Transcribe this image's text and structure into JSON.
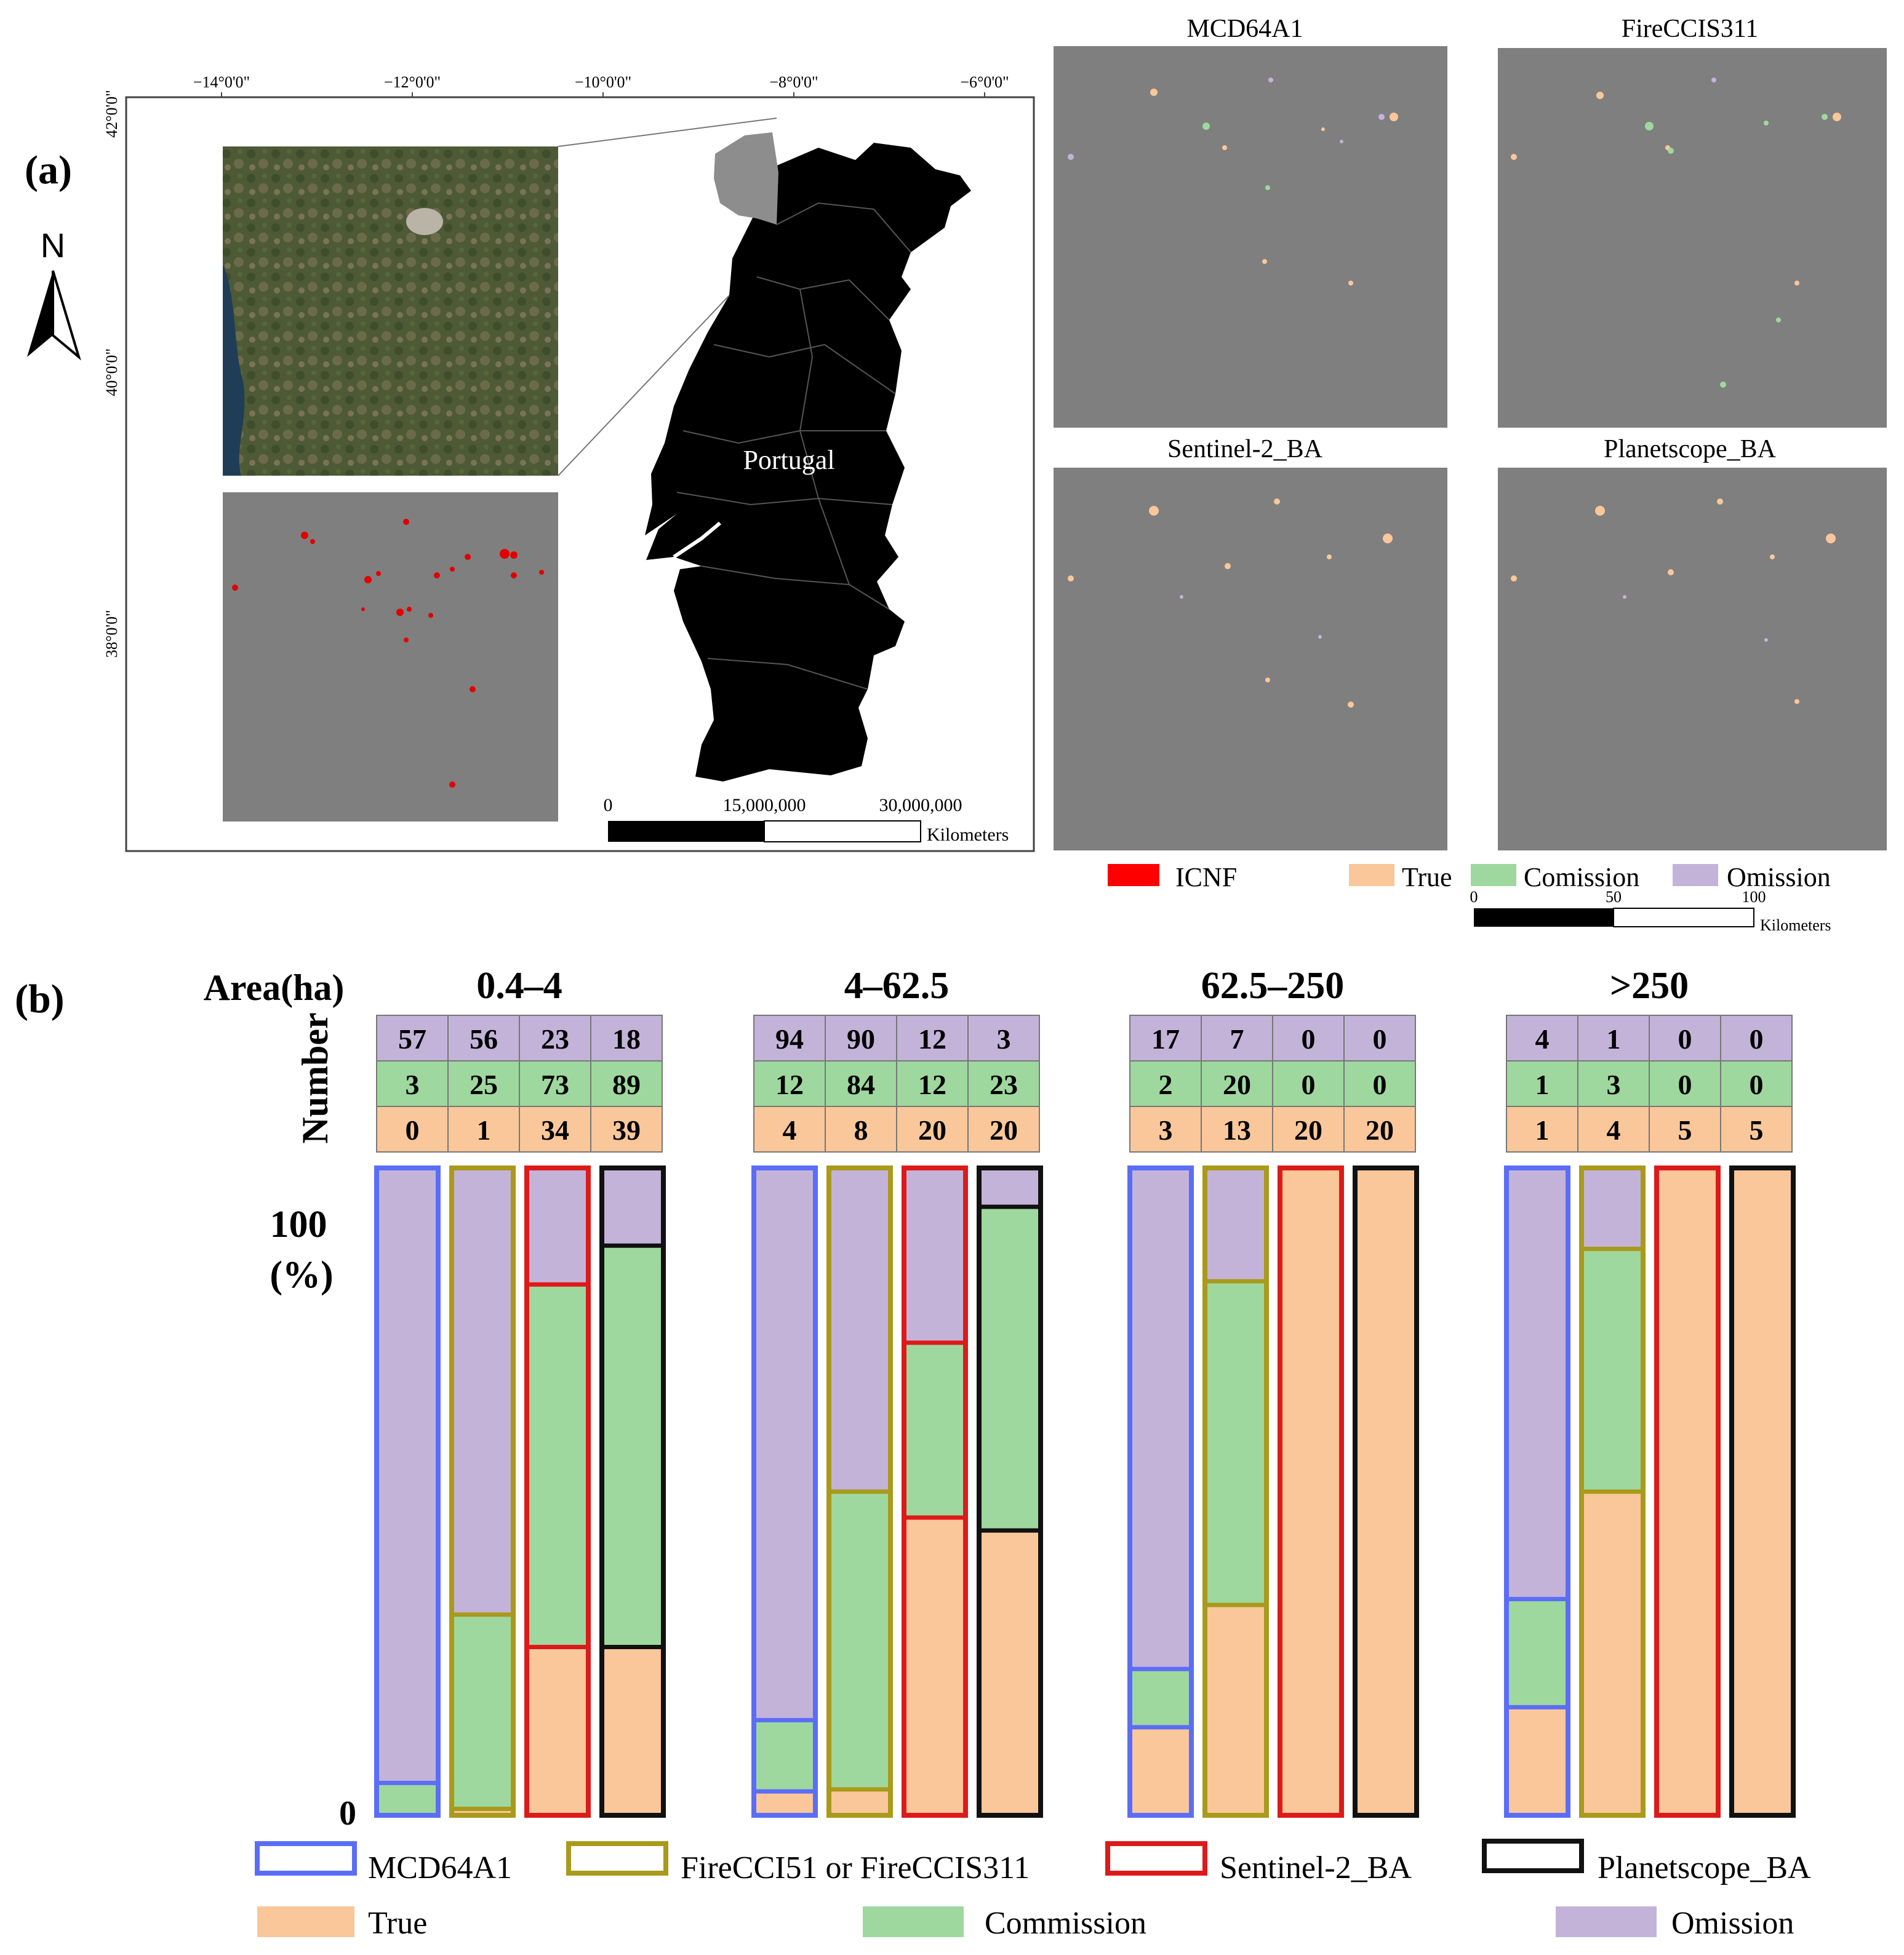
{
  "panel_a": {
    "label": "(a)",
    "north_label": "N",
    "lon_ticks": [
      "−14°0'0\"",
      "−12°0'0\"",
      "−10°0'0\"",
      "−8°0'0\"",
      "−6°0'0\""
    ],
    "lat_ticks": [
      "42°0'0\"",
      "40°0'0\"",
      "38°0'0\""
    ],
    "country_label": "Portugal",
    "scale_left": {
      "ticks": [
        "0",
        "15,000,000",
        "30,000,000"
      ],
      "unit": "Kilometers"
    },
    "map_titles": [
      "MCD64A1",
      "FireCCIS311",
      "Sentinel-2_BA",
      "Planetscope_BA"
    ],
    "legend": [
      {
        "label": "ICNF",
        "color": "#ff0000"
      },
      {
        "label": "True",
        "color": "#f9c79a"
      },
      {
        "label": "Comission",
        "color": "#9ed89e"
      },
      {
        "label": "Omission",
        "color": "#c4b3d9"
      }
    ],
    "scale_right": {
      "ticks": [
        "0",
        "50",
        "100"
      ],
      "unit": "Kilometers"
    }
  },
  "panel_b": {
    "label": "(b)",
    "area_label": "Area(ha)",
    "number_label": "Number",
    "y_top": "100",
    "y_unit": "(%)",
    "y_bottom": "0"
  },
  "colors": {
    "true": "#f9c79a",
    "commission": "#9ed89e",
    "omission": "#c4b3d9",
    "MCD64A1": "#5b6df7",
    "FireCCI": "#a99a1c",
    "Sentinel2": "#dd1a1a",
    "Planetscope": "#111111"
  },
  "chart_data": {
    "type": "bar",
    "stacked": true,
    "title": "",
    "xlabel": "Area(ha)",
    "ylabel": "(%)",
    "ylim": [
      0,
      100
    ],
    "area_classes": [
      "0.4–4",
      "4–62.5",
      "62.5–250",
      ">250"
    ],
    "products": [
      "MCD64A1",
      "FireCCI51 or FireCCIS311",
      "Sentinel-2_BA",
      "Planetscope_BA"
    ],
    "number_table": [
      {
        "omission": [
          57,
          56,
          23,
          18
        ],
        "commission": [
          3,
          25,
          73,
          89
        ],
        "true": [
          0,
          1,
          34,
          39
        ]
      },
      {
        "omission": [
          94,
          90,
          12,
          3
        ],
        "commission": [
          12,
          84,
          12,
          23
        ],
        "true": [
          4,
          8,
          20,
          20
        ]
      },
      {
        "omission": [
          17,
          7,
          0,
          0
        ],
        "commission": [
          2,
          20,
          0,
          0
        ],
        "true": [
          3,
          13,
          20,
          20
        ]
      },
      {
        "omission": [
          4,
          1,
          0,
          0
        ],
        "commission": [
          1,
          3,
          0,
          0
        ],
        "true": [
          1,
          4,
          5,
          5
        ]
      }
    ],
    "series": [
      {
        "name": "True",
        "values_by_area": [
          [
            0,
            1,
            26,
            26
          ],
          [
            3.7,
            4,
            46,
            44
          ],
          [
            13.6,
            32.5,
            100,
            100
          ],
          [
            16.7,
            50,
            100,
            100
          ]
        ]
      },
      {
        "name": "Commission",
        "values_by_area": [
          [
            5,
            30,
            56,
            62
          ],
          [
            11,
            46,
            27,
            50
          ],
          [
            9,
            50,
            0,
            0
          ],
          [
            16.7,
            37.5,
            0,
            0
          ]
        ]
      },
      {
        "name": "Omission",
        "values_by_area": [
          [
            95,
            69,
            18,
            12
          ],
          [
            85.3,
            50,
            27,
            6
          ],
          [
            77.4,
            17.5,
            0,
            0
          ],
          [
            66.6,
            12.5,
            0,
            0
          ]
        ]
      }
    ],
    "legend": {
      "outlines": [
        "MCD64A1",
        "FireCCI51 or FireCCIS311",
        "Sentinel-2_BA",
        "Planetscope_BA"
      ],
      "fills": [
        "True",
        "Commission",
        "Omission"
      ]
    }
  }
}
